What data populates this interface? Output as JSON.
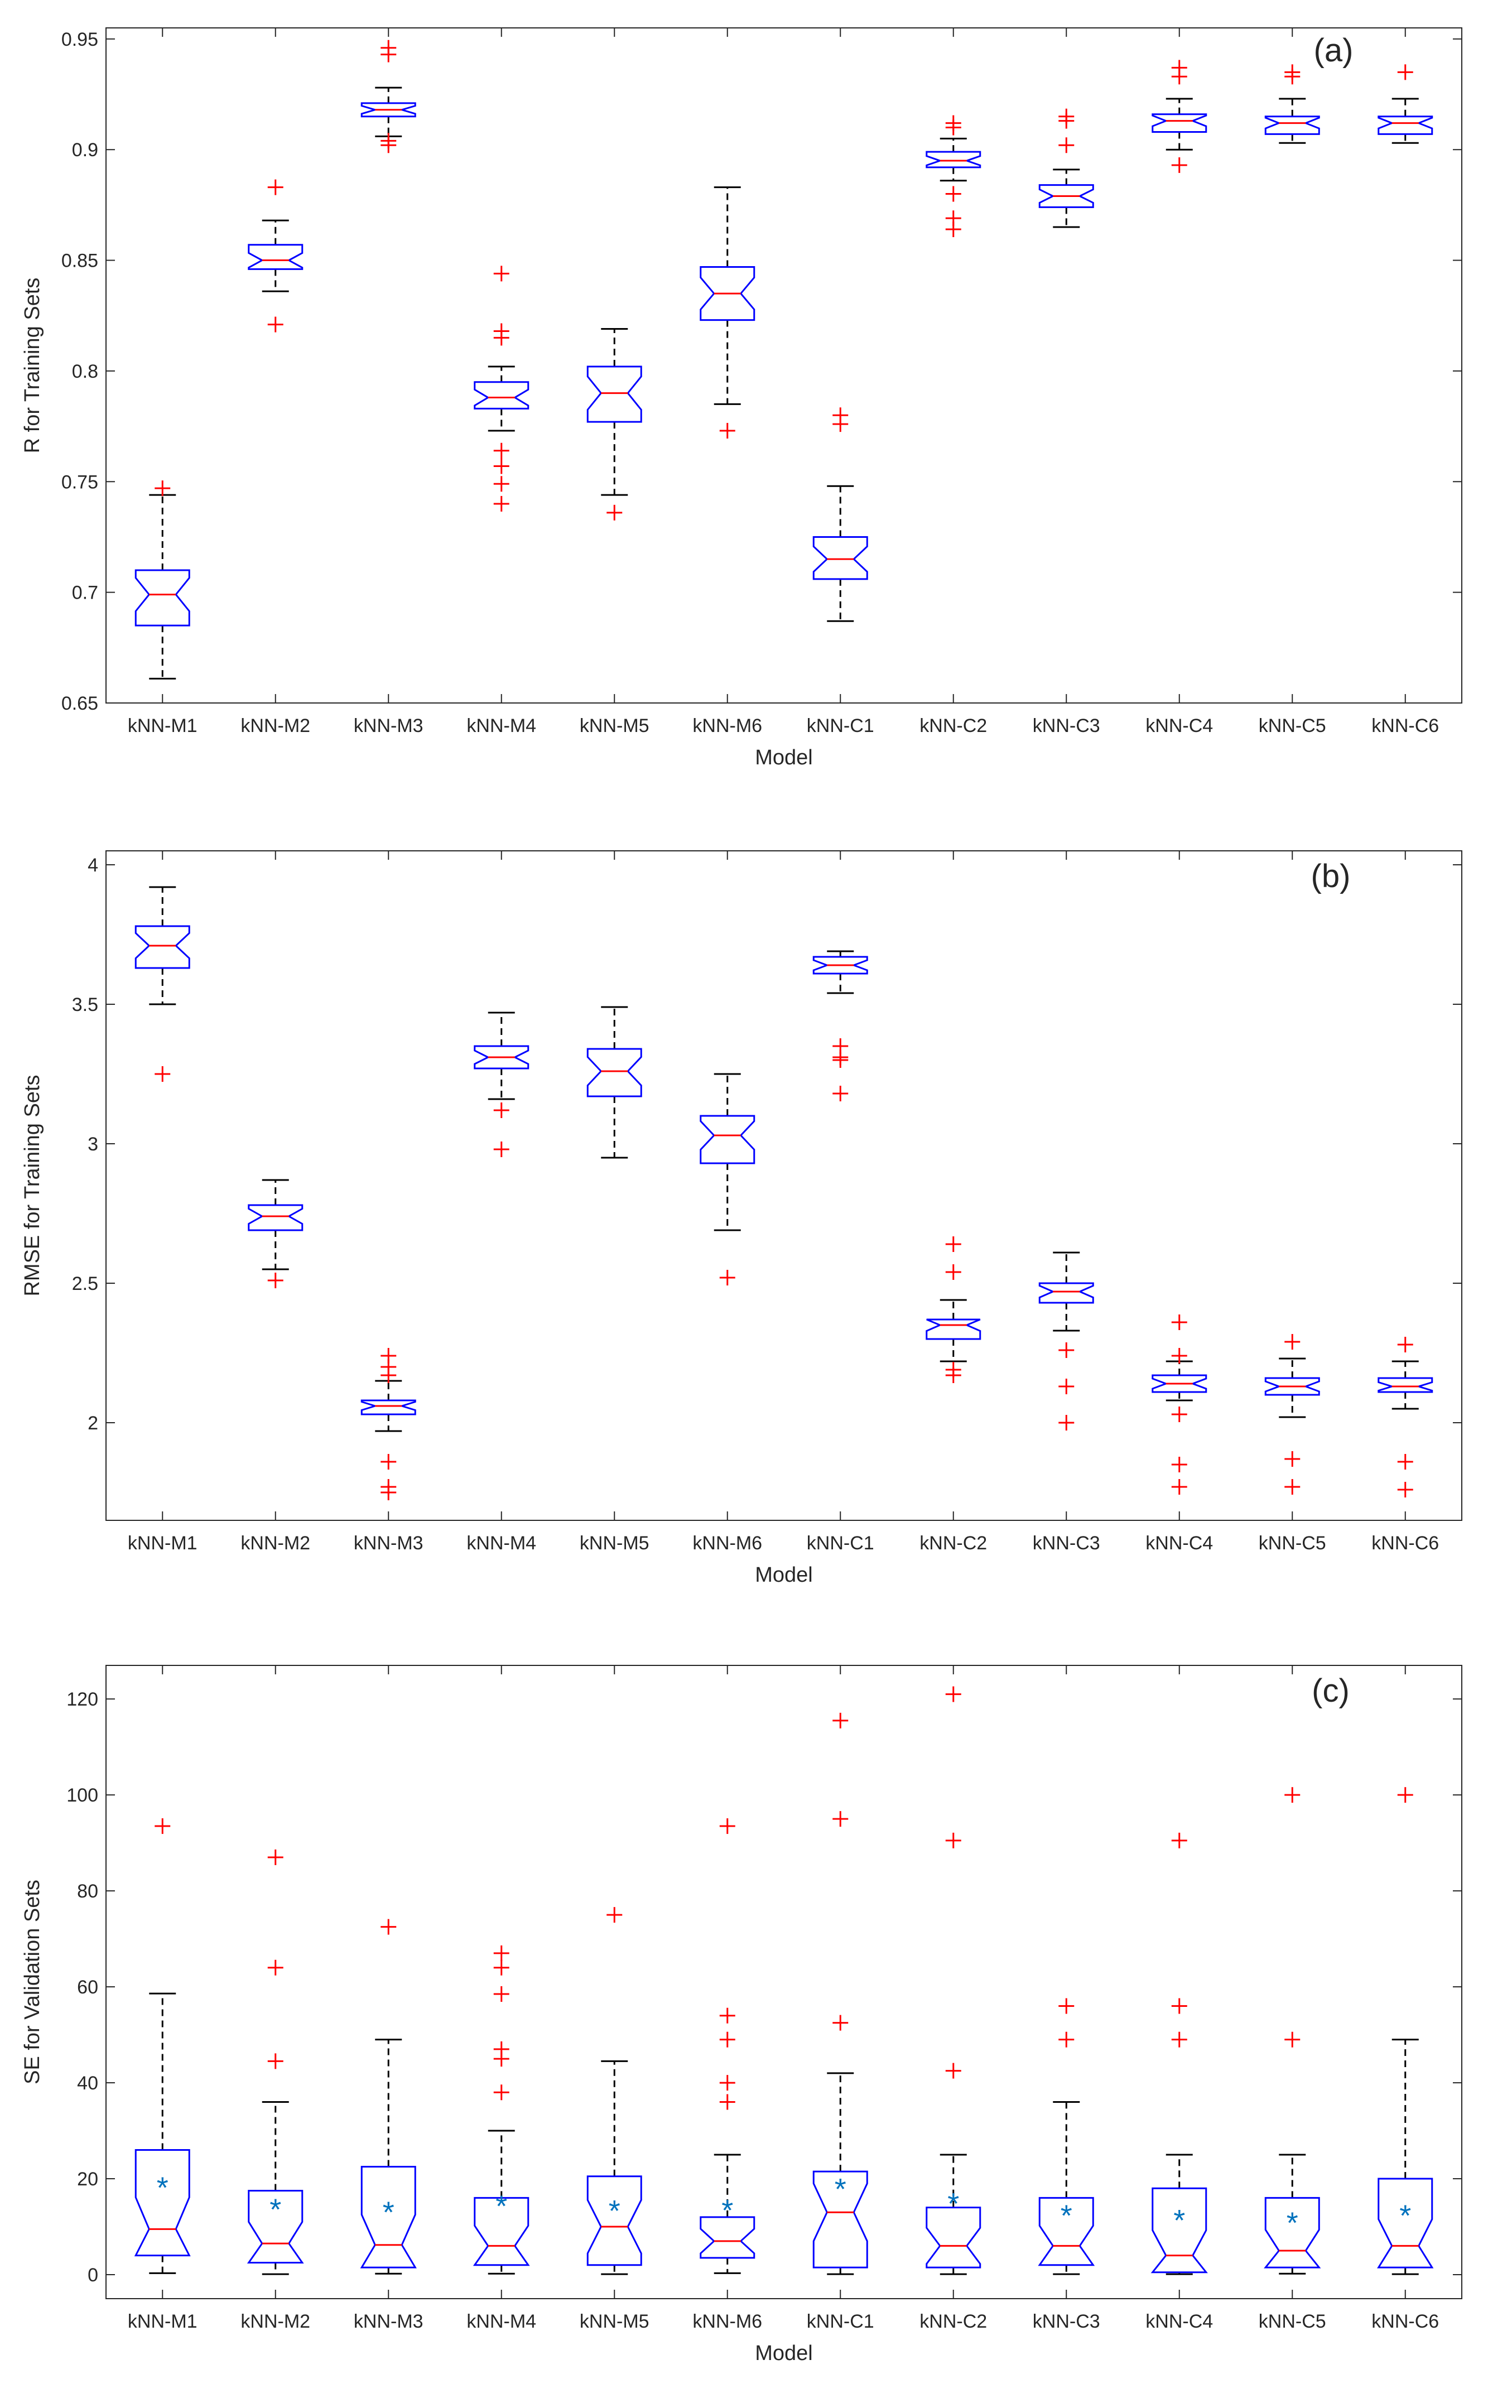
{
  "colors": {
    "box": "#0000ff",
    "median": "#ff0000",
    "outlier": "#ff0000",
    "whisker": "#000000",
    "mean": "#0072bd",
    "axis": "#262626"
  },
  "chart_data": [
    {
      "type": "box",
      "panel_label": "(a)",
      "title": "",
      "xlabel": "Model",
      "ylabel": "R for Training Sets",
      "ylim": [
        0.65,
        0.955
      ],
      "yticks": [
        0.65,
        0.7,
        0.75,
        0.8,
        0.85,
        0.9,
        0.95
      ],
      "ytick_labels": [
        "0.65",
        "0.7",
        "0.75",
        "0.8",
        "0.85",
        "0.9",
        "0.95"
      ],
      "notched": true,
      "categories": [
        "kNN-M1",
        "kNN-M2",
        "kNN-M3",
        "kNN-M4",
        "kNN-M5",
        "kNN-M6",
        "kNN-C1",
        "kNN-C2",
        "kNN-C3",
        "kNN-C4",
        "kNN-C5",
        "kNN-C6"
      ],
      "boxes": [
        {
          "min": 0.661,
          "q1": 0.685,
          "median": 0.699,
          "q3": 0.71,
          "max": 0.744,
          "outliers": [
            0.747
          ]
        },
        {
          "min": 0.836,
          "q1": 0.846,
          "median": 0.85,
          "q3": 0.857,
          "max": 0.868,
          "outliers": [
            0.821,
            0.883
          ]
        },
        {
          "min": 0.906,
          "q1": 0.915,
          "median": 0.918,
          "q3": 0.921,
          "max": 0.928,
          "outliers": [
            0.902,
            0.904,
            0.943,
            0.946
          ]
        },
        {
          "min": 0.773,
          "q1": 0.783,
          "median": 0.788,
          "q3": 0.795,
          "max": 0.802,
          "outliers": [
            0.74,
            0.749,
            0.757,
            0.764,
            0.815,
            0.818,
            0.844
          ]
        },
        {
          "min": 0.744,
          "q1": 0.777,
          "median": 0.79,
          "q3": 0.802,
          "max": 0.819,
          "outliers": [
            0.736
          ]
        },
        {
          "min": 0.785,
          "q1": 0.823,
          "median": 0.835,
          "q3": 0.847,
          "max": 0.883,
          "outliers": [
            0.773
          ]
        },
        {
          "min": 0.687,
          "q1": 0.706,
          "median": 0.715,
          "q3": 0.725,
          "max": 0.748,
          "outliers": [
            0.776,
            0.78
          ]
        },
        {
          "min": 0.886,
          "q1": 0.892,
          "median": 0.895,
          "q3": 0.899,
          "max": 0.905,
          "outliers": [
            0.864,
            0.869,
            0.88,
            0.91,
            0.912
          ]
        },
        {
          "min": 0.865,
          "q1": 0.874,
          "median": 0.879,
          "q3": 0.884,
          "max": 0.891,
          "outliers": [
            0.902,
            0.913,
            0.915
          ]
        },
        {
          "min": 0.9,
          "q1": 0.908,
          "median": 0.913,
          "q3": 0.916,
          "max": 0.923,
          "outliers": [
            0.893,
            0.933,
            0.937
          ]
        },
        {
          "min": 0.903,
          "q1": 0.907,
          "median": 0.912,
          "q3": 0.915,
          "max": 0.923,
          "outliers": [
            0.933,
            0.935
          ]
        },
        {
          "min": 0.903,
          "q1": 0.907,
          "median": 0.912,
          "q3": 0.915,
          "max": 0.923,
          "outliers": [
            0.935
          ]
        }
      ]
    },
    {
      "type": "box",
      "panel_label": "(b)",
      "title": "",
      "xlabel": "Model",
      "ylabel": "RMSE for Training Sets",
      "ylim": [
        1.65,
        4.05
      ],
      "yticks": [
        2,
        2.5,
        3,
        3.5,
        4
      ],
      "ytick_labels": [
        "2",
        "2.5",
        "3",
        "3.5",
        "4"
      ],
      "notched": true,
      "categories": [
        "kNN-M1",
        "kNN-M2",
        "kNN-M3",
        "kNN-M4",
        "kNN-M5",
        "kNN-M6",
        "kNN-C1",
        "kNN-C2",
        "kNN-C3",
        "kNN-C4",
        "kNN-C5",
        "kNN-C6"
      ],
      "boxes": [
        {
          "min": 3.5,
          "q1": 3.63,
          "median": 3.71,
          "q3": 3.78,
          "max": 3.92,
          "outliers": [
            3.25
          ]
        },
        {
          "min": 2.55,
          "q1": 2.69,
          "median": 2.74,
          "q3": 2.78,
          "max": 2.87,
          "outliers": [
            2.51
          ]
        },
        {
          "min": 1.97,
          "q1": 2.03,
          "median": 2.06,
          "q3": 2.08,
          "max": 2.15,
          "outliers": [
            1.75,
            1.77,
            1.86,
            2.17,
            2.2,
            2.24
          ]
        },
        {
          "min": 3.16,
          "q1": 3.27,
          "median": 3.31,
          "q3": 3.35,
          "max": 3.47,
          "outliers": [
            2.98,
            3.12
          ]
        },
        {
          "min": 2.95,
          "q1": 3.17,
          "median": 3.26,
          "q3": 3.34,
          "max": 3.49,
          "outliers": []
        },
        {
          "min": 2.69,
          "q1": 2.93,
          "median": 3.03,
          "q3": 3.1,
          "max": 3.25,
          "outliers": [
            2.52
          ]
        },
        {
          "min": 3.54,
          "q1": 3.61,
          "median": 3.64,
          "q3": 3.67,
          "max": 3.69,
          "outliers": [
            3.18,
            3.3,
            3.31,
            3.35
          ]
        },
        {
          "min": 2.22,
          "q1": 2.3,
          "median": 2.35,
          "q3": 2.37,
          "max": 2.44,
          "outliers": [
            2.17,
            2.19,
            2.54,
            2.64
          ]
        },
        {
          "min": 2.33,
          "q1": 2.43,
          "median": 2.47,
          "q3": 2.5,
          "max": 2.61,
          "outliers": [
            2.0,
            2.13,
            2.26
          ]
        },
        {
          "min": 2.08,
          "q1": 2.11,
          "median": 2.14,
          "q3": 2.17,
          "max": 2.22,
          "outliers": [
            1.77,
            1.85,
            2.03,
            2.24,
            2.36
          ]
        },
        {
          "min": 2.02,
          "q1": 2.1,
          "median": 2.13,
          "q3": 2.16,
          "max": 2.23,
          "outliers": [
            1.77,
            1.87,
            2.29
          ]
        },
        {
          "min": 2.05,
          "q1": 2.11,
          "median": 2.13,
          "q3": 2.16,
          "max": 2.22,
          "outliers": [
            1.76,
            1.86,
            2.28
          ]
        }
      ]
    },
    {
      "type": "box",
      "panel_label": "(c)",
      "title": "",
      "xlabel": "Model",
      "ylabel": "SE for Validation Sets",
      "ylim": [
        -5,
        127
      ],
      "yticks": [
        0,
        20,
        40,
        60,
        80,
        100,
        120
      ],
      "ytick_labels": [
        "0",
        "20",
        "40",
        "60",
        "80",
        "100",
        "120"
      ],
      "notched": true,
      "show_mean": true,
      "categories": [
        "kNN-M1",
        "kNN-M2",
        "kNN-M3",
        "kNN-M4",
        "kNN-M5",
        "kNN-M6",
        "kNN-C1",
        "kNN-C2",
        "kNN-C3",
        "kNN-C4",
        "kNN-C5",
        "kNN-C6"
      ],
      "boxes": [
        {
          "min": 0.3,
          "q1": 4,
          "median": 9.5,
          "q3": 26,
          "max": 58.6,
          "mean": 18.3,
          "outliers": [
            93.5
          ]
        },
        {
          "min": 0.1,
          "q1": 2.5,
          "median": 6.5,
          "q3": 17.5,
          "max": 36,
          "mean": 13.8,
          "outliers": [
            44.5,
            64,
            87
          ]
        },
        {
          "min": 0.2,
          "q1": 1.5,
          "median": 6.2,
          "q3": 22.5,
          "max": 49,
          "mean": 13.2,
          "outliers": [
            72.5
          ]
        },
        {
          "min": 0.2,
          "q1": 2,
          "median": 6,
          "q3": 16,
          "max": 30,
          "mean": 14.5,
          "outliers": [
            38,
            45,
            47,
            58.5,
            64,
            67
          ]
        },
        {
          "min": 0.1,
          "q1": 2,
          "median": 10,
          "q3": 20.5,
          "max": 44.5,
          "mean": 13.5,
          "outliers": [
            75
          ]
        },
        {
          "min": 0.3,
          "q1": 3.5,
          "median": 7,
          "q3": 12,
          "max": 25,
          "mean": 13.6,
          "outliers": [
            36,
            40,
            49,
            54,
            93.5
          ]
        },
        {
          "min": 0.1,
          "q1": 1.5,
          "median": 13,
          "q3": 21.5,
          "max": 42,
          "mean": 18,
          "outliers": [
            52.5,
            95,
            115.5
          ]
        },
        {
          "min": 0.1,
          "q1": 1.5,
          "median": 6,
          "q3": 14,
          "max": 25,
          "mean": 15,
          "outliers": [
            42.5,
            90.5,
            121
          ]
        },
        {
          "min": 0.1,
          "q1": 2,
          "median": 6,
          "q3": 16,
          "max": 36,
          "mean": 12.5,
          "outliers": [
            49,
            56
          ]
        },
        {
          "min": 0.1,
          "q1": 0.5,
          "median": 4,
          "q3": 18,
          "max": 25,
          "mean": 11.5,
          "outliers": [
            49,
            56,
            90.5
          ]
        },
        {
          "min": 0.2,
          "q1": 1.5,
          "median": 5,
          "q3": 16,
          "max": 25,
          "mean": 11,
          "outliers": [
            49,
            100
          ]
        },
        {
          "min": 0.1,
          "q1": 1.5,
          "median": 6,
          "q3": 20,
          "max": 49,
          "mean": 12.5,
          "outliers": [
            100
          ]
        }
      ]
    }
  ]
}
